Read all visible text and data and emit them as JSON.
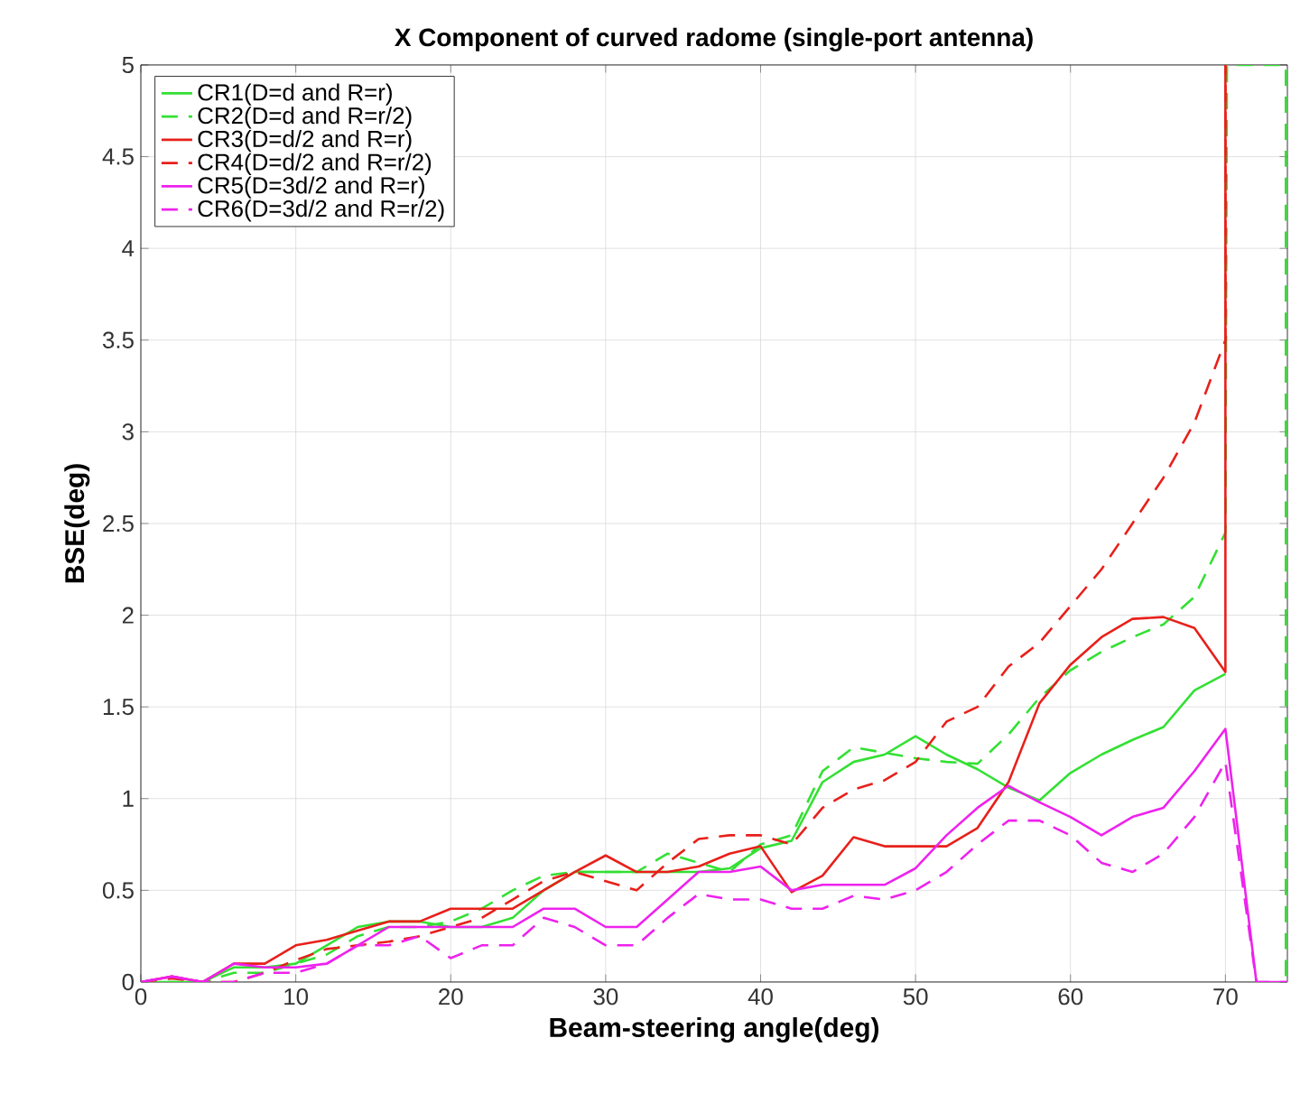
{
  "chart_data": {
    "type": "line",
    "title": "X Component of curved radome (single-port antenna)",
    "xlabel": "Beam-steering angle(deg)",
    "ylabel": "BSE(deg)",
    "x": [
      0,
      2,
      4,
      6,
      8,
      10,
      12,
      14,
      16,
      18,
      20,
      22,
      24,
      26,
      28,
      30,
      32,
      34,
      36,
      38,
      40,
      42,
      44,
      46,
      48,
      50,
      52,
      54,
      56,
      58,
      60,
      62,
      64,
      66,
      68,
      70,
      72,
      74
    ],
    "xlim": [
      0,
      74
    ],
    "ylim": [
      0,
      5
    ],
    "xticks": [
      0,
      10,
      20,
      30,
      40,
      50,
      60,
      70
    ],
    "yticks": [
      0,
      0.5,
      1,
      1.5,
      2,
      2.5,
      3,
      3.5,
      4,
      4.5,
      5
    ],
    "grid": true,
    "legend": "top left",
    "marker": "none",
    "series": [
      {
        "name": "CR1(D=d and R=r)",
        "color": "#33e033",
        "line_style": "solid",
        "x": [
          0,
          2,
          4,
          6,
          8,
          10,
          12,
          14,
          16,
          18,
          20,
          22,
          24,
          26,
          28,
          30,
          32,
          34,
          36,
          38,
          40,
          42,
          44,
          46,
          48,
          50,
          52,
          54,
          56,
          58,
          60,
          62,
          64,
          66,
          68,
          70
        ],
        "values": [
          0,
          0,
          0,
          0.08,
          0.08,
          0.1,
          0.2,
          0.3,
          0.33,
          0.33,
          0.3,
          0.3,
          0.35,
          0.5,
          0.6,
          0.6,
          0.6,
          0.6,
          0.6,
          0.62,
          0.73,
          0.77,
          1.09,
          1.2,
          1.24,
          1.34,
          1.24,
          1.16,
          1.06,
          0.99,
          1.14,
          1.24,
          1.32,
          1.39,
          1.59,
          1.68
        ]
      },
      {
        "name": "CR2(D=d and R=r/2)",
        "color": "#33e033",
        "line_style": "dashed",
        "x": [
          0,
          2,
          4,
          6,
          8,
          10,
          12,
          14,
          16,
          18,
          20,
          22,
          24,
          26,
          28,
          30,
          32,
          34,
          36,
          38,
          40,
          42,
          44,
          46,
          48,
          50,
          52,
          54,
          56,
          58,
          60,
          62,
          64,
          66,
          68,
          70,
          70.1,
          73.9,
          73.9
        ],
        "values": [
          0,
          0,
          0,
          0.05,
          0.05,
          0.1,
          0.15,
          0.25,
          0.3,
          0.3,
          0.33,
          0.4,
          0.5,
          0.58,
          0.6,
          0.6,
          0.6,
          0.7,
          0.65,
          0.6,
          0.75,
          0.8,
          1.15,
          1.28,
          1.25,
          1.22,
          1.2,
          1.19,
          1.35,
          1.55,
          1.7,
          1.8,
          1.88,
          1.95,
          2.1,
          2.45,
          5,
          5,
          0
        ]
      },
      {
        "name": "CR3(D=d/2 and R=r)",
        "color": "#e8201a",
        "line_style": "solid",
        "x": [
          0,
          2,
          4,
          6,
          8,
          10,
          12,
          14,
          16,
          18,
          20,
          22,
          24,
          26,
          28,
          30,
          32,
          34,
          36,
          38,
          40,
          42,
          44,
          46,
          48,
          50,
          52,
          54,
          56,
          58,
          60,
          62,
          64,
          66,
          68,
          70,
          70
        ],
        "values": [
          0,
          0.03,
          0,
          0.1,
          0.1,
          0.2,
          0.23,
          0.28,
          0.33,
          0.33,
          0.4,
          0.4,
          0.4,
          0.5,
          0.6,
          0.69,
          0.6,
          0.6,
          0.63,
          0.7,
          0.74,
          0.49,
          0.58,
          0.79,
          0.74,
          0.74,
          0.74,
          0.84,
          1.09,
          1.52,
          1.73,
          1.88,
          1.98,
          1.99,
          1.93,
          1.69,
          5
        ]
      },
      {
        "name": "CR4(D=d/2 and R=r/2)",
        "color": "#e8201a",
        "line_style": "dashed",
        "x": [
          0,
          2,
          4,
          6,
          8,
          10,
          12,
          14,
          16,
          18,
          20,
          22,
          24,
          26,
          28,
          30,
          32,
          34,
          36,
          38,
          40,
          42,
          44,
          46,
          48,
          50,
          52,
          54,
          56,
          58,
          60,
          62,
          64,
          66,
          68,
          70,
          70
        ],
        "values": [
          0,
          0.02,
          0,
          0,
          0.05,
          0.12,
          0.18,
          0.2,
          0.22,
          0.25,
          0.3,
          0.35,
          0.45,
          0.55,
          0.6,
          0.55,
          0.5,
          0.65,
          0.78,
          0.8,
          0.8,
          0.75,
          0.95,
          1.05,
          1.1,
          1.2,
          1.42,
          1.5,
          1.72,
          1.85,
          2.05,
          2.25,
          2.5,
          2.75,
          3.05,
          3.5,
          5
        ]
      },
      {
        "name": "CR5(D=3d/2 and R=r)",
        "color": "#ee22ee",
        "line_style": "solid",
        "values": [
          0,
          0.03,
          0,
          0.1,
          0.08,
          0.08,
          0.1,
          0.2,
          0.3,
          0.3,
          0.3,
          0.3,
          0.3,
          0.4,
          0.4,
          0.3,
          0.3,
          0.45,
          0.6,
          0.6,
          0.63,
          0.5,
          0.53,
          0.53,
          0.53,
          0.62,
          0.8,
          0.95,
          1.07,
          0.98,
          0.9,
          0.8,
          0.9,
          0.95,
          1.15,
          1.38,
          0,
          0
        ]
      },
      {
        "name": "CR6(D=3d/2 and R=r/2)",
        "color": "#ee22ee",
        "line_style": "dashed",
        "values": [
          0,
          0.03,
          0,
          0,
          0.05,
          0.05,
          0.1,
          0.2,
          0.2,
          0.25,
          0.13,
          0.2,
          0.2,
          0.35,
          0.3,
          0.2,
          0.2,
          0.35,
          0.48,
          0.45,
          0.45,
          0.4,
          0.4,
          0.47,
          0.45,
          0.5,
          0.6,
          0.75,
          0.88,
          0.88,
          0.8,
          0.65,
          0.6,
          0.7,
          0.9,
          1.2,
          0,
          0
        ]
      }
    ]
  }
}
